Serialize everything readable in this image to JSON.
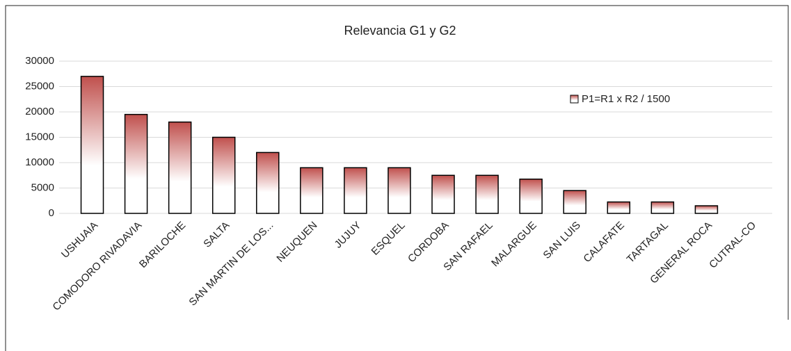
{
  "chart_data": {
    "type": "bar",
    "title": "Relevancia G1 y G2",
    "categories": [
      "USHUAIA",
      "COMODORO RIVADAVIA",
      "BARILOCHE",
      "SALTA",
      "SAN MARTIN DE LOS...",
      "NEUQUEN",
      "JUJUY",
      "ESQUEL",
      "CORDOBA",
      "SAN RAFAEL",
      "MALARGUE",
      "SAN LUIS",
      "CALAFATE",
      "TARTAGAL",
      "GENERAL ROCA",
      "CUTRAL-CO"
    ],
    "series": [
      {
        "name": "P1=R1 x R2 / 1500",
        "color": "#c0504d",
        "values": [
          27000,
          19500,
          18000,
          15000,
          12000,
          9000,
          9000,
          9000,
          7500,
          7500,
          6750,
          4500,
          2250,
          2250,
          1500,
          0
        ]
      }
    ],
    "ylim": [
      0,
      30000
    ],
    "yticks": [
      0,
      5000,
      10000,
      15000,
      20000,
      25000,
      30000
    ],
    "grid": true,
    "legend": "upper right"
  }
}
